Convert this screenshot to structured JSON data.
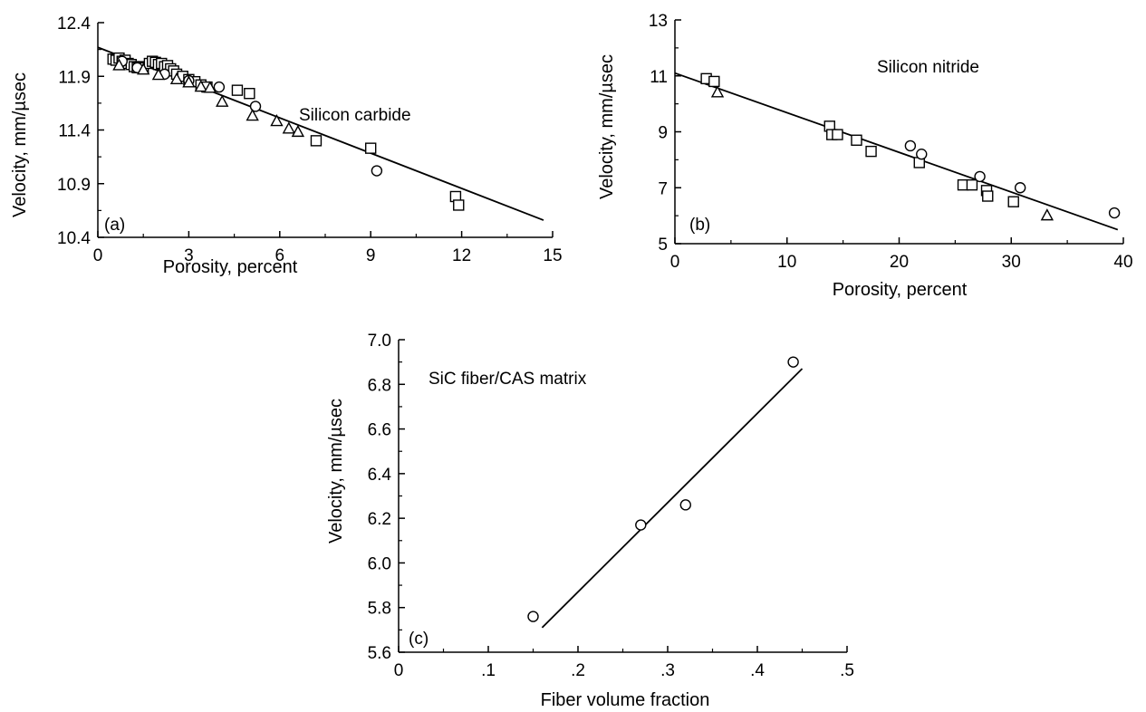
{
  "chart_data": [
    {
      "type": "scatter",
      "panel_label": "(a)",
      "annotation": "Silicon carbide",
      "xlabel": "Porosity, percent",
      "ylabel": "Velocity, mm/µsec",
      "xlim": [
        0,
        15
      ],
      "ylim": [
        10.4,
        12.4
      ],
      "xticks": [
        0,
        3,
        6,
        9,
        12,
        15
      ],
      "xtick_labels": [
        "0",
        "3",
        "6",
        "9",
        "12",
        "15"
      ],
      "yticks": [
        10.4,
        10.9,
        11.4,
        11.9,
        12.4
      ],
      "ytick_labels": [
        "10.4",
        "10.9",
        "11.4",
        "11.9",
        "12.4"
      ],
      "fit_line": {
        "x": [
          0,
          14.7
        ],
        "y": [
          12.17,
          10.56
        ]
      },
      "series": [
        {
          "marker": "square",
          "x": [
            0.5,
            0.6,
            0.7,
            0.8,
            0.9,
            1.0,
            1.1,
            1.2,
            1.3,
            1.4,
            1.5,
            1.7,
            1.8,
            1.9,
            2.0,
            2.1,
            2.2,
            2.3,
            2.4,
            2.5,
            2.6,
            2.8,
            3.0,
            3.2,
            3.4,
            3.6,
            4.6,
            5.0,
            7.2,
            9.0,
            11.8,
            11.9
          ],
          "y": [
            12.06,
            12.05,
            12.07,
            12.04,
            12.05,
            12.02,
            12.01,
            11.99,
            11.98,
            11.99,
            11.98,
            12.02,
            12.04,
            12.03,
            12.01,
            12.02,
            11.99,
            12.0,
            11.97,
            11.95,
            11.92,
            11.9,
            11.87,
            11.85,
            11.82,
            11.8,
            11.77,
            11.74,
            11.3,
            11.23,
            10.78,
            10.7
          ]
        },
        {
          "marker": "circle",
          "x": [
            0.8,
            1.3,
            2.2,
            3.0,
            4.0,
            5.2,
            9.2
          ],
          "y": [
            12.04,
            11.98,
            11.92,
            11.86,
            11.8,
            11.62,
            11.02
          ]
        },
        {
          "marker": "triangle",
          "x": [
            0.7,
            1.5,
            2.0,
            2.6,
            3.0,
            3.4,
            3.7,
            4.1,
            5.1,
            5.9,
            6.3,
            6.6
          ],
          "y": [
            12.0,
            11.96,
            11.91,
            11.87,
            11.84,
            11.8,
            11.79,
            11.66,
            11.53,
            11.48,
            11.41,
            11.38
          ]
        }
      ]
    },
    {
      "type": "scatter",
      "panel_label": "(b)",
      "annotation": "Silicon nitride",
      "xlabel": "Porosity, percent",
      "ylabel": "Velocity, mm/µsec",
      "xlim": [
        0,
        40
      ],
      "ylim": [
        5,
        13
      ],
      "xticks": [
        0,
        10,
        20,
        30,
        40
      ],
      "xtick_labels": [
        "0",
        "10",
        "20",
        "30",
        "40"
      ],
      "yticks": [
        5,
        7,
        9,
        11,
        13
      ],
      "ytick_labels": [
        "5",
        "7",
        "9",
        "11",
        "13"
      ],
      "fit_line": {
        "x": [
          0,
          39.5
        ],
        "y": [
          11.1,
          5.5
        ]
      },
      "series": [
        {
          "marker": "square",
          "x": [
            2.8,
            3.5,
            13.8,
            14.0,
            14.5,
            16.2,
            17.5,
            21.8,
            25.7,
            26.5,
            27.8,
            27.9,
            30.2
          ],
          "y": [
            10.9,
            10.8,
            9.2,
            8.9,
            8.9,
            8.7,
            8.3,
            7.9,
            7.1,
            7.1,
            6.9,
            6.7,
            6.5
          ]
        },
        {
          "marker": "circle",
          "x": [
            21.0,
            22.0,
            27.2,
            30.8,
            39.2
          ],
          "y": [
            8.5,
            8.2,
            7.4,
            7.0,
            6.1
          ]
        },
        {
          "marker": "triangle",
          "x": [
            3.8,
            33.2
          ],
          "y": [
            10.4,
            6.0
          ]
        }
      ]
    },
    {
      "type": "scatter",
      "panel_label": "(c)",
      "annotation": "SiC fiber/CAS matrix",
      "xlabel": "Fiber volume fraction",
      "ylabel": "Velocity, mm/µsec",
      "xlim": [
        0,
        0.5
      ],
      "ylim": [
        5.6,
        7.0
      ],
      "xticks": [
        0,
        0.1,
        0.2,
        0.3,
        0.4,
        0.5
      ],
      "xtick_labels": [
        "0",
        ".1",
        ".2",
        ".3",
        ".4",
        ".5"
      ],
      "yticks": [
        5.6,
        5.8,
        6.0,
        6.2,
        6.4,
        6.6,
        6.8,
        7.0
      ],
      "ytick_labels": [
        "5.6",
        "5.8",
        "6.0",
        "6.2",
        "6.4",
        "6.6",
        "6.8",
        "7.0"
      ],
      "fit_line": {
        "x": [
          0.16,
          0.45
        ],
        "y": [
          5.71,
          6.87
        ]
      },
      "series": [
        {
          "marker": "circle",
          "x": [
            0.15,
            0.27,
            0.32,
            0.44
          ],
          "y": [
            5.76,
            6.17,
            6.26,
            6.9
          ]
        }
      ]
    }
  ]
}
